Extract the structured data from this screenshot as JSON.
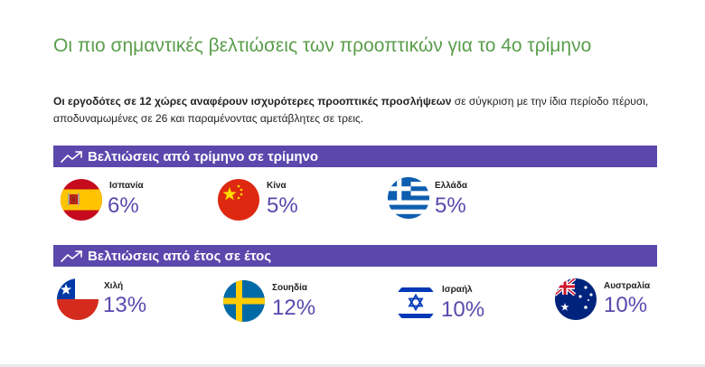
{
  "header": {
    "title": "Οι πιο σημαντικές βελτιώσεις των προοπτικών για το 4ο τρίμηνο",
    "intro_bold": "Οι εργοδότες σε 12 χώρες αναφέρουν ισχυρότερες προοπτικές προσλήψεων",
    "intro_rest": " σε σύγκριση με την ίδια περίοδο πέρυσι, αποδυναμωμένες σε 26 και παραμένοντας αμετάβλητες σε τρεις."
  },
  "sections": [
    {
      "label": "Βελτιώσεις από τρίμηνο σε τρίμηνο",
      "icon": "trend-up-icon",
      "items": [
        {
          "country": "Ισπανία",
          "value": "6%",
          "flag": "spain-flag-icon"
        },
        {
          "country": "Κίνα",
          "value": "5%",
          "flag": "china-flag-icon"
        },
        {
          "country": "Ελλάδα",
          "value": "5%",
          "flag": "greece-flag-icon"
        }
      ]
    },
    {
      "label": "Βελτιώσεις από έτος σε έτος",
      "icon": "trend-up-icon",
      "items": [
        {
          "country": "Χιλή",
          "value": "13%",
          "flag": "chile-flag-icon"
        },
        {
          "country": "Σουηδία",
          "value": "12%",
          "flag": "sweden-flag-icon"
        },
        {
          "country": "Ισραήλ",
          "value": "10%",
          "flag": "israel-flag-icon"
        },
        {
          "country": "Αυστραλία",
          "value": "10%",
          "flag": "australia-flag-icon"
        }
      ]
    }
  ],
  "colors": {
    "title": "#5a9e4b",
    "accent": "#5b48ad",
    "text": "#222222"
  }
}
